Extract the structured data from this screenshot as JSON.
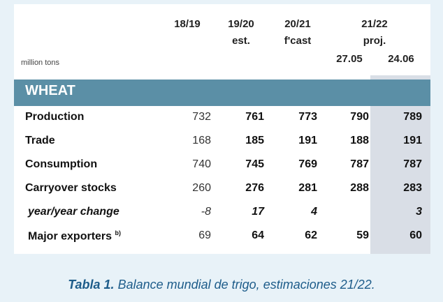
{
  "table": {
    "unit_label": "million tons",
    "section_label": "WHEAT",
    "headers": [
      {
        "line1": "18/19",
        "line2": ""
      },
      {
        "line1": "19/20",
        "line2": "est."
      },
      {
        "line1": "20/21",
        "line2": "f'cast"
      },
      {
        "line1": "21/22",
        "line2": "proj."
      }
    ],
    "sub_headers": [
      "27.05",
      "24.06"
    ],
    "rows": [
      {
        "label": "Production",
        "values": [
          "732",
          "761",
          "773",
          "790",
          "789"
        ]
      },
      {
        "label": "Trade",
        "values": [
          "168",
          "185",
          "191",
          "188",
          "191"
        ]
      },
      {
        "label": "Consumption",
        "values": [
          "740",
          "745",
          "769",
          "787",
          "787"
        ]
      },
      {
        "label": "Carryover stocks",
        "values": [
          "260",
          "276",
          "281",
          "288",
          "283"
        ]
      },
      {
        "label": "year/year change",
        "values": [
          "-8",
          "17",
          "4",
          "",
          "3"
        ]
      },
      {
        "label": "Major exporters",
        "footnote": "b)",
        "values": [
          "69",
          "64",
          "62",
          "59",
          "60"
        ]
      }
    ]
  },
  "caption": {
    "prefix": "Tabla 1.",
    "text": " Balance mundial de trigo, estimaciones 21/22."
  },
  "chart_data": {
    "type": "table",
    "title": "",
    "section": "WHEAT",
    "unit": "million tons",
    "columns": [
      "18/19",
      "19/20 est.",
      "20/21 f'cast",
      "21/22 proj. 27.05",
      "21/22 proj. 24.06"
    ],
    "rows": [
      {
        "label": "Production",
        "values": [
          732,
          761,
          773,
          790,
          789
        ]
      },
      {
        "label": "Trade",
        "values": [
          168,
          185,
          191,
          188,
          191
        ]
      },
      {
        "label": "Consumption",
        "values": [
          740,
          745,
          769,
          787,
          787
        ]
      },
      {
        "label": "Carryover stocks",
        "values": [
          260,
          276,
          281,
          288,
          283
        ]
      },
      {
        "label": "year/year change",
        "values": [
          -8,
          17,
          4,
          null,
          3
        ]
      },
      {
        "label": "Major exporters",
        "values": [
          69,
          64,
          62,
          59,
          60
        ]
      }
    ]
  }
}
